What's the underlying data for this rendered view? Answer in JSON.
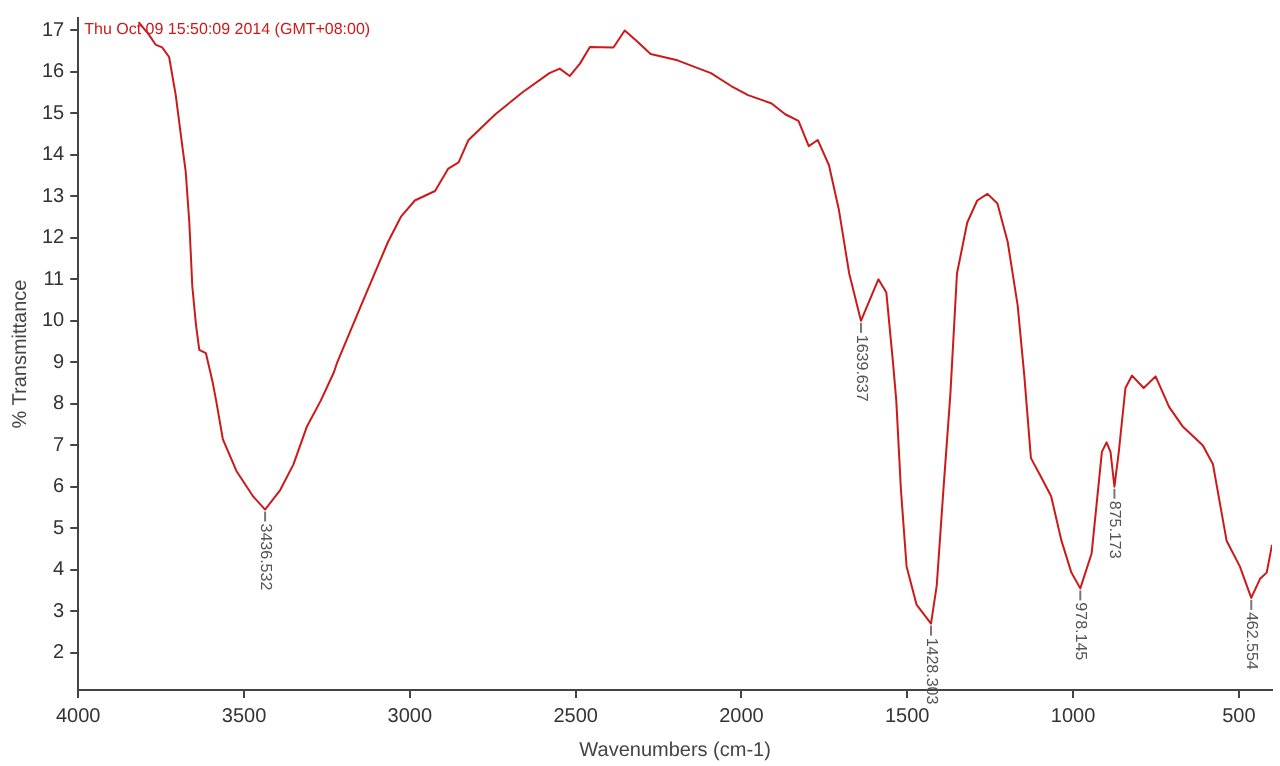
{
  "chart_data": {
    "type": "line",
    "xlabel": "Wavenumbers (cm-1)",
    "ylabel": "% Transmittance",
    "annotations": [
      "Thu Oct 09 15:50:09 2014 (GMT+08:00)",
      {
        "text": "3436.532",
        "x": 3436.5,
        "y": 5.45
      },
      {
        "text": "1639.637",
        "x": 1639.6,
        "y": 10.0
      },
      {
        "text": "1428.303",
        "x": 1428.3,
        "y": 2.7
      },
      {
        "text": "978.145",
        "x": 978.1,
        "y": 3.55
      },
      {
        "text": "875.173",
        "x": 875.2,
        "y": 6.0
      },
      {
        "text": "462.554",
        "x": 462.6,
        "y": 3.32
      }
    ],
    "series": [
      {
        "color": "#cc1a1a",
        "x": [
          3818,
          3787,
          3767,
          3747,
          3726,
          3706,
          3686,
          3676,
          3665,
          3656,
          3645,
          3635,
          3615,
          3595,
          3584,
          3564,
          3523,
          3473,
          3436.5,
          3391,
          3351,
          3310,
          3269,
          3229,
          3219,
          3147,
          3066,
          3026,
          2985,
          2924,
          2884,
          2853,
          2823,
          2742,
          2660,
          2579,
          2548,
          2518,
          2487,
          2457,
          2386,
          2352,
          2315,
          2274,
          2193,
          2092,
          2031,
          1980,
          1909,
          1868,
          1828,
          1797,
          1770,
          1736,
          1706,
          1675,
          1639.6,
          1587,
          1563,
          1543,
          1533,
          1519,
          1502,
          1472,
          1428.3,
          1411,
          1391,
          1370,
          1350,
          1319,
          1289,
          1258,
          1228,
          1197,
          1167,
          1147,
          1127,
          1096,
          1066,
          1035,
          1005,
          978.1,
          944,
          913,
          899,
          887,
          875.2,
          862,
          842,
          822,
          787,
          751,
          710,
          670,
          609,
          578,
          537,
          497,
          462.6,
          436,
          416,
          400
        ],
        "values": [
          17.2,
          16.9,
          16.66,
          16.59,
          16.36,
          15.44,
          14.2,
          13.6,
          12.37,
          10.83,
          9.91,
          9.3,
          9.22,
          8.53,
          8.07,
          7.15,
          6.38,
          5.77,
          5.45,
          5.92,
          6.54,
          7.46,
          8.07,
          8.76,
          9.0,
          10.37,
          11.9,
          12.52,
          12.9,
          13.13,
          13.67,
          13.82,
          14.36,
          14.98,
          15.51,
          15.97,
          16.08,
          15.9,
          16.2,
          16.6,
          16.59,
          17.0,
          16.74,
          16.43,
          16.28,
          15.97,
          15.66,
          15.44,
          15.24,
          14.98,
          14.82,
          14.21,
          14.36,
          13.75,
          12.67,
          11.14,
          10.0,
          11.0,
          10.68,
          9.0,
          8.07,
          5.92,
          4.08,
          3.16,
          2.7,
          3.62,
          5.92,
          8.22,
          11.14,
          12.37,
          12.9,
          13.06,
          12.83,
          11.9,
          10.37,
          8.68,
          6.69,
          6.23,
          5.77,
          4.7,
          3.93,
          3.55,
          4.39,
          6.84,
          7.07,
          6.84,
          6.0,
          6.84,
          8.38,
          8.68,
          8.38,
          8.66,
          7.92,
          7.46,
          7.0,
          6.54,
          4.7,
          4.08,
          3.32,
          3.78,
          3.93,
          4.6
        ]
      }
    ],
    "xlim": [
      4000,
      400
    ],
    "xticks": [
      4000,
      3500,
      3000,
      2500,
      2000,
      1500,
      1000,
      500
    ],
    "ylim": [
      1.1,
      17.3
    ],
    "yticks": [
      2,
      3,
      4,
      5,
      6,
      7,
      8,
      9,
      10,
      11,
      12,
      13,
      14,
      15,
      16,
      17
    ],
    "grid": false,
    "legend": false,
    "marker": "none",
    "line_style": "solid"
  }
}
